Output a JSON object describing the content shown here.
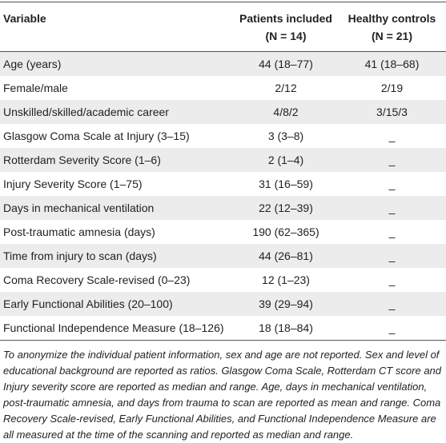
{
  "table": {
    "header": [
      "Variable",
      "Patients included (N = 14)",
      "Healthy controls (N = 21)"
    ],
    "rows": [
      [
        "Age (years)",
        "44 (18–77)",
        "41 (18–68)"
      ],
      [
        "Female/male",
        "2/12",
        "2/19"
      ],
      [
        "Unskilled/skilled/academic career",
        "4/8/2",
        "3/15/3"
      ],
      [
        "Glasgow Coma Scale at Injury (3–15)",
        "3 (3–8)",
        "_"
      ],
      [
        "Rotterdam Severity Score (1–6)",
        "2 (1–4)",
        "_"
      ],
      [
        "Injury Severity Score (1–75)",
        "31 (16–59)",
        "_"
      ],
      [
        "Days in mechanical ventilation",
        "22 (12–39)",
        "_"
      ],
      [
        "Post-traumatic amnesia (days)",
        "190 (62–365)",
        "_"
      ],
      [
        "Time from injury to scan (days)",
        "44 (26–81)",
        "_"
      ],
      [
        "Coma Recovery Scale-revised (0–23)",
        "12 (1–23)",
        "_"
      ],
      [
        "Early Functional Abilities (20–100)",
        "39 (29–94)",
        "_"
      ],
      [
        "Functional Independence Measure (18–126)",
        "18 (18–84)",
        "_"
      ]
    ],
    "footnote": "To anonymize the individual patient information, sex and age are not reported. Sex and level of educational background are reported as ratios. Glasgow Coma Scale, Rotterdam CT score and Injury severity score are reported as median and range. Age, days in mechanical ventilation, post-traumatic amnesia, and days from trauma to scan are reported as mean and range. Coma Recovery Scale-revised, Early Functional Abilities, and Functional Independence Measure are all measured at the time of the scanning and reported as median and range."
  }
}
